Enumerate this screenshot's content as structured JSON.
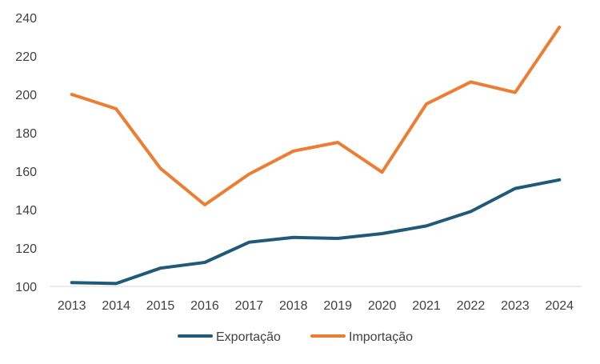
{
  "chart_data": {
    "type": "line",
    "categories": [
      "2013",
      "2014",
      "2015",
      "2016",
      "2017",
      "2018",
      "2019",
      "2020",
      "2021",
      "2022",
      "2023",
      "2024"
    ],
    "ylim": [
      100,
      240
    ],
    "yticks": [
      100,
      120,
      140,
      160,
      180,
      200,
      220,
      240
    ],
    "grid": false,
    "legend_position": "bottom",
    "series": [
      {
        "name": "Exportação",
        "color": "#1f5a78",
        "values": [
          102,
          101.5,
          109.5,
          112.5,
          123,
          125.5,
          125,
          127.5,
          131.5,
          139,
          151,
          155.5
        ]
      },
      {
        "name": "Importação",
        "color": "#ed7d31",
        "values": [
          200,
          192.5,
          161.5,
          142.5,
          158.5,
          170.5,
          175,
          159.5,
          195,
          206.5,
          201,
          235
        ]
      }
    ]
  }
}
